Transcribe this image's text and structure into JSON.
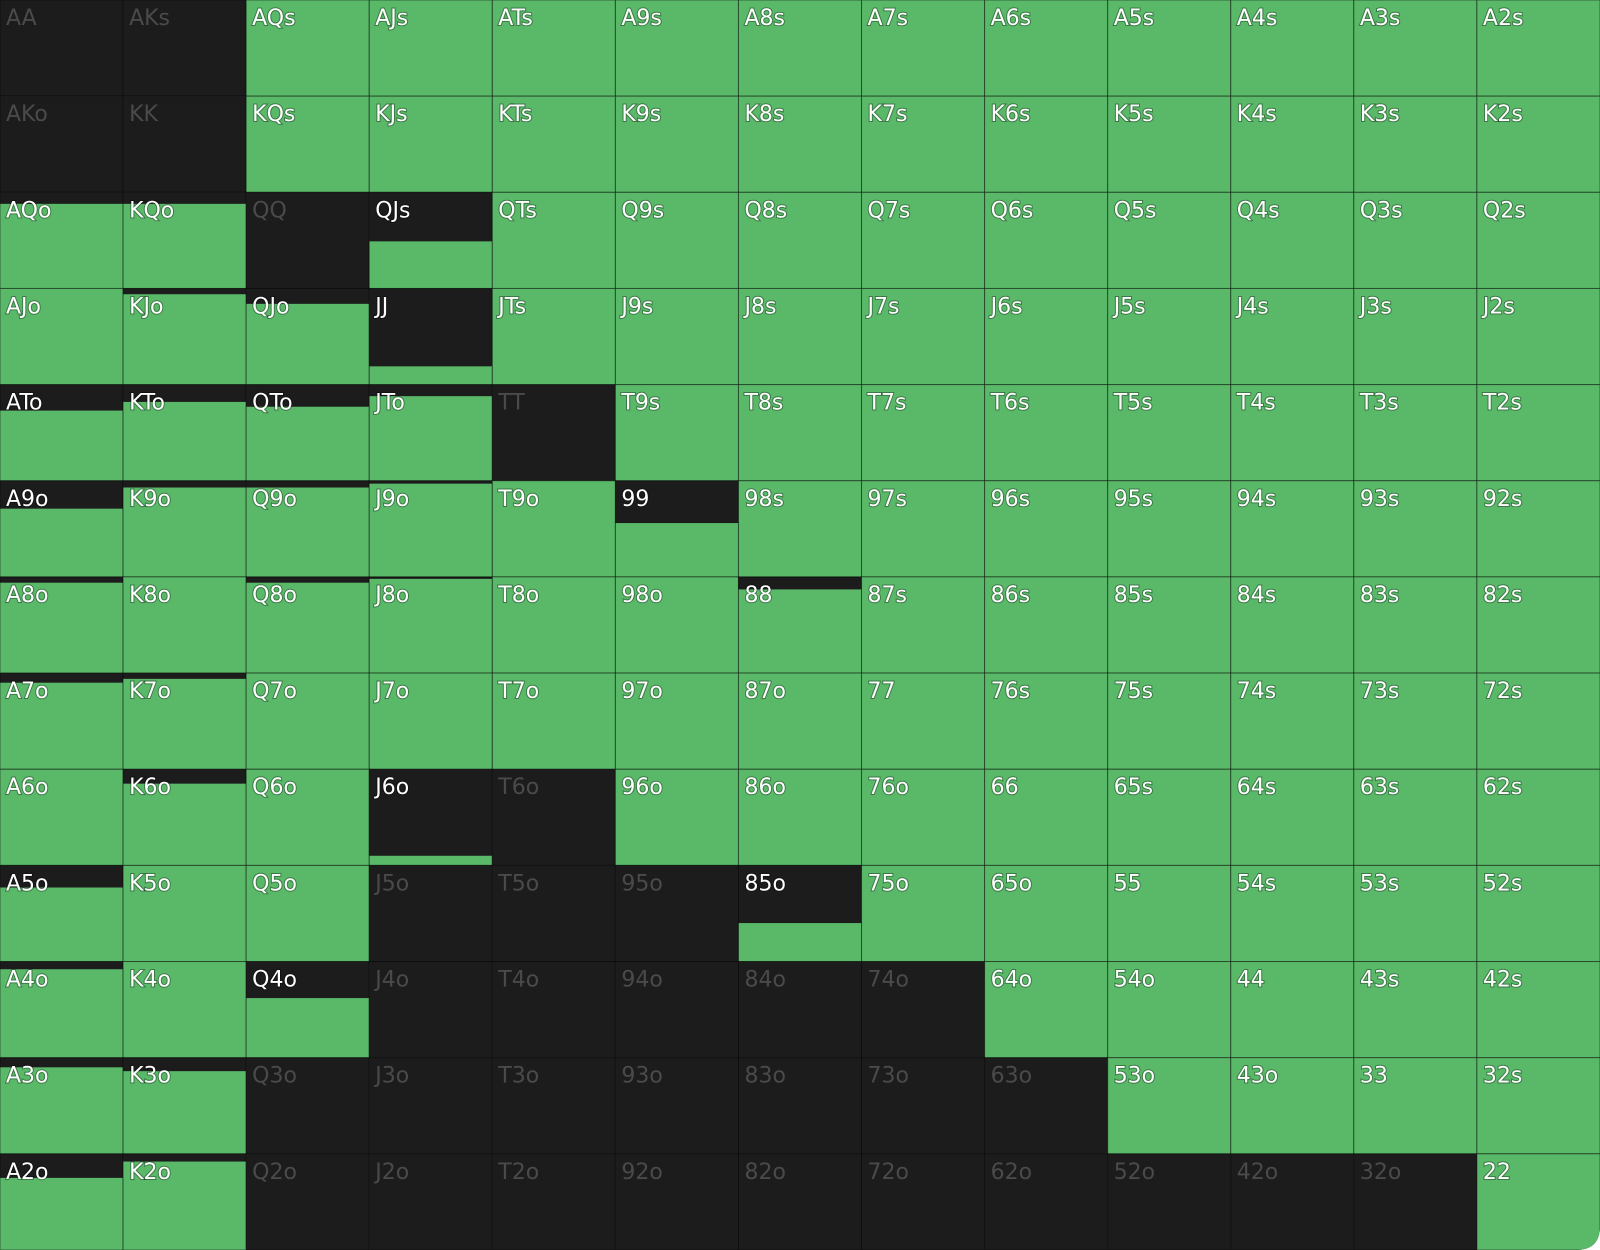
{
  "grid": {
    "rows": [
      {
        "labels": [
          "AA",
          "AKs",
          "AQs",
          "AJs",
          "ATs",
          "A9s",
          "A8s",
          "A7s",
          "A6s",
          "A5s",
          "A4s",
          "A3s",
          "A2s"
        ],
        "freq": [
          0,
          0,
          100,
          100,
          100,
          100,
          100,
          100,
          100,
          100,
          100,
          100,
          100
        ]
      },
      {
        "labels": [
          "AKo",
          "KK",
          "KQs",
          "KJs",
          "KTs",
          "K9s",
          "K8s",
          "K7s",
          "K6s",
          "K5s",
          "K4s",
          "K3s",
          "K2s"
        ],
        "freq": [
          0,
          0,
          100,
          100,
          100,
          100,
          100,
          100,
          100,
          100,
          100,
          100,
          100
        ]
      },
      {
        "labels": [
          "AQo",
          "KQo",
          "QQ",
          "QJs",
          "QTs",
          "Q9s",
          "Q8s",
          "Q7s",
          "Q6s",
          "Q5s",
          "Q4s",
          "Q3s",
          "Q2s"
        ],
        "freq": [
          88,
          88,
          0,
          49,
          100,
          100,
          100,
          100,
          100,
          100,
          100,
          100,
          100
        ]
      },
      {
        "labels": [
          "AJo",
          "KJo",
          "QJo",
          "JJ",
          "JTs",
          "J9s",
          "J8s",
          "J7s",
          "J6s",
          "J5s",
          "J4s",
          "J3s",
          "J2s"
        ],
        "freq": [
          100,
          94,
          84,
          19,
          100,
          100,
          100,
          100,
          100,
          100,
          100,
          100,
          100
        ]
      },
      {
        "labels": [
          "ATo",
          "KTo",
          "QTo",
          "JTo",
          "TT",
          "T9s",
          "T8s",
          "T7s",
          "T6s",
          "T5s",
          "T4s",
          "T3s",
          "T2s"
        ],
        "freq": [
          73,
          82,
          77,
          88,
          0,
          100,
          100,
          100,
          100,
          100,
          100,
          100,
          100
        ]
      },
      {
        "labels": [
          "A9o",
          "K9o",
          "Q9o",
          "J9o",
          "T9o",
          "99",
          "98s",
          "97s",
          "96s",
          "95s",
          "94s",
          "93s",
          "92s"
        ],
        "freq": [
          71,
          93,
          93,
          97,
          100,
          56,
          100,
          100,
          100,
          100,
          100,
          100,
          100
        ]
      },
      {
        "labels": [
          "A8o",
          "K8o",
          "Q8o",
          "J8o",
          "T8o",
          "98o",
          "88",
          "87s",
          "86s",
          "85s",
          "84s",
          "83s",
          "82s"
        ],
        "freq": [
          94,
          100,
          94,
          98,
          100,
          100,
          87,
          100,
          100,
          100,
          100,
          100,
          100
        ]
      },
      {
        "labels": [
          "A7o",
          "K7o",
          "Q7o",
          "J7o",
          "T7o",
          "97o",
          "87o",
          "77",
          "76s",
          "75s",
          "74s",
          "73s",
          "72s"
        ],
        "freq": [
          90,
          94,
          100,
          100,
          100,
          100,
          100,
          100,
          100,
          100,
          100,
          100,
          100
        ]
      },
      {
        "labels": [
          "A6o",
          "K6o",
          "Q6o",
          "J6o",
          "T6o",
          "96o",
          "86o",
          "76o",
          "66",
          "65s",
          "64s",
          "63s",
          "62s"
        ],
        "freq": [
          100,
          85,
          100,
          10,
          0,
          100,
          100,
          100,
          100,
          100,
          100,
          100,
          100
        ]
      },
      {
        "labels": [
          "A5o",
          "K5o",
          "Q5o",
          "J5o",
          "T5o",
          "95o",
          "85o",
          "75o",
          "65o",
          "55",
          "54s",
          "53s",
          "52s"
        ],
        "freq": [
          77,
          100,
          100,
          0,
          0,
          0,
          40,
          100,
          100,
          100,
          100,
          100,
          100
        ]
      },
      {
        "labels": [
          "A4o",
          "K4o",
          "Q4o",
          "J4o",
          "T4o",
          "94o",
          "84o",
          "74o",
          "64o",
          "54o",
          "44",
          "43s",
          "42s"
        ],
        "freq": [
          92,
          100,
          62,
          0,
          0,
          0,
          0,
          0,
          100,
          100,
          100,
          100,
          100
        ]
      },
      {
        "labels": [
          "A3o",
          "K3o",
          "Q3o",
          "J3o",
          "T3o",
          "93o",
          "83o",
          "73o",
          "63o",
          "53o",
          "43o",
          "33",
          "32s"
        ],
        "freq": [
          90,
          86,
          0,
          0,
          0,
          0,
          0,
          0,
          0,
          100,
          100,
          100,
          100
        ]
      },
      {
        "labels": [
          "A2o",
          "K2o",
          "Q2o",
          "J2o",
          "T2o",
          "92o",
          "82o",
          "72o",
          "62o",
          "52o",
          "42o",
          "32o",
          "22"
        ],
        "freq": [
          75,
          92,
          0,
          0,
          0,
          0,
          0,
          0,
          0,
          0,
          0,
          0,
          100
        ]
      }
    ]
  }
}
